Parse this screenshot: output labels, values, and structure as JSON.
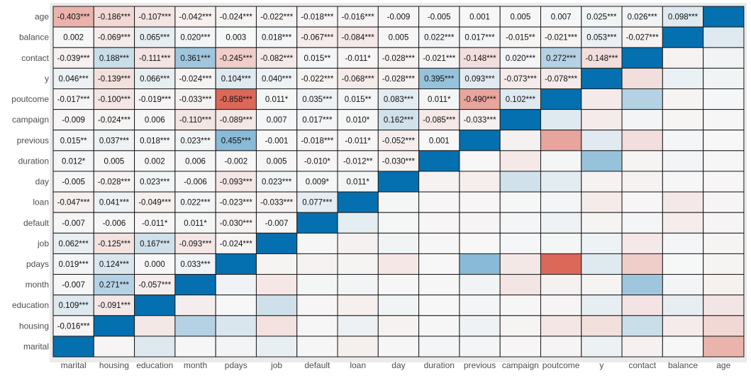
{
  "chart_data": {
    "type": "heatmap",
    "title": "",
    "xlabel": "",
    "ylabel": "",
    "x_categories": [
      "marital",
      "housing",
      "education",
      "month",
      "pdays",
      "job",
      "default",
      "loan",
      "day",
      "duration",
      "previous",
      "campaign",
      "poutcome",
      "y",
      "contact",
      "balance",
      "age"
    ],
    "y_categories_top_to_bottom": [
      "age",
      "balance",
      "contact",
      "y",
      "poutcome",
      "campaign",
      "previous",
      "duration",
      "day",
      "loan",
      "default",
      "job",
      "pdays",
      "month",
      "education",
      "housing",
      "marital"
    ],
    "color_scale": {
      "negative": "#D6503F",
      "zero": "#F7F7F7",
      "positive": "#0570B0",
      "range": [
        -1,
        1
      ]
    },
    "grid": true,
    "legend": "none",
    "note_upper_triangle": "unlabeled mirror cells",
    "labels": {
      "age": [
        "-0.403***",
        "-0.186***",
        "-0.107***",
        "-0.042***",
        "-0.024***",
        "-0.022***",
        "-0.018***",
        "-0.016***",
        "-0.009",
        "-0.005",
        "0.001",
        "0.005",
        "0.007",
        "0.025***",
        "0.026***",
        "0.098***"
      ],
      "balance": [
        "0.002",
        "-0.069***",
        "0.065***",
        "0.020***",
        "0.003",
        "0.018***",
        "-0.067***",
        "-0.084***",
        "0.005",
        "0.022***",
        "0.017***",
        "-0.015**",
        "-0.021***",
        "0.053***",
        "-0.027***"
      ],
      "contact": [
        "-0.039***",
        "0.188***",
        "-0.111***",
        "0.361***",
        "-0.245***",
        "-0.082***",
        "0.015**",
        "-0.011*",
        "-0.028***",
        "-0.021***",
        "-0.148***",
        "0.020***",
        "0.272***",
        "-0.148***"
      ],
      "y": [
        "0.046***",
        "-0.139***",
        "0.066***",
        "-0.024***",
        "0.104***",
        "0.040***",
        "-0.022***",
        "-0.068***",
        "-0.028***",
        "0.395***",
        "0.093***",
        "-0.073***",
        "-0.078***"
      ],
      "poutcome": [
        "-0.017***",
        "-0.100***",
        "-0.019***",
        "-0.033***",
        "-0.858***",
        "0.011*",
        "0.035***",
        "0.015**",
        "0.083***",
        "0.011*",
        "-0.490***",
        "0.102***"
      ],
      "campaign": [
        "-0.009",
        "-0.024***",
        "0.006",
        "-0.110***",
        "-0.089***",
        "0.007",
        "0.017***",
        "0.010*",
        "0.162***",
        "-0.085***",
        "-0.033***"
      ],
      "previous": [
        "0.015**",
        "0.037***",
        "0.018***",
        "0.023***",
        "0.455***",
        "-0.001",
        "-0.018***",
        "-0.011*",
        "-0.052***",
        "0.001"
      ],
      "duration": [
        "0.012*",
        "0.005",
        "0.002",
        "0.006",
        "-0.002",
        "0.005",
        "-0.010*",
        "-0.012**",
        "-0.030***"
      ],
      "day": [
        "-0.005",
        "-0.028***",
        "0.023***",
        "-0.006",
        "-0.093***",
        "0.023***",
        "0.009*",
        "0.011*"
      ],
      "loan": [
        "-0.047***",
        "0.041***",
        "-0.049***",
        "0.022***",
        "-0.023***",
        "-0.033***",
        "0.077***"
      ],
      "default": [
        "-0.007",
        "-0.006",
        "-0.011*",
        "0.011*",
        "-0.030***",
        "-0.007"
      ],
      "job": [
        "0.062***",
        "-0.125***",
        "0.167***",
        "-0.093***",
        "-0.024***"
      ],
      "pdays": [
        "0.019***",
        "0.124***",
        "0.000",
        "0.033***"
      ],
      "month": [
        "-0.007",
        "0.271***",
        "-0.057***"
      ],
      "education": [
        "0.109***",
        "-0.091***"
      ],
      "housing": [
        "-0.016***"
      ],
      "marital": []
    }
  }
}
